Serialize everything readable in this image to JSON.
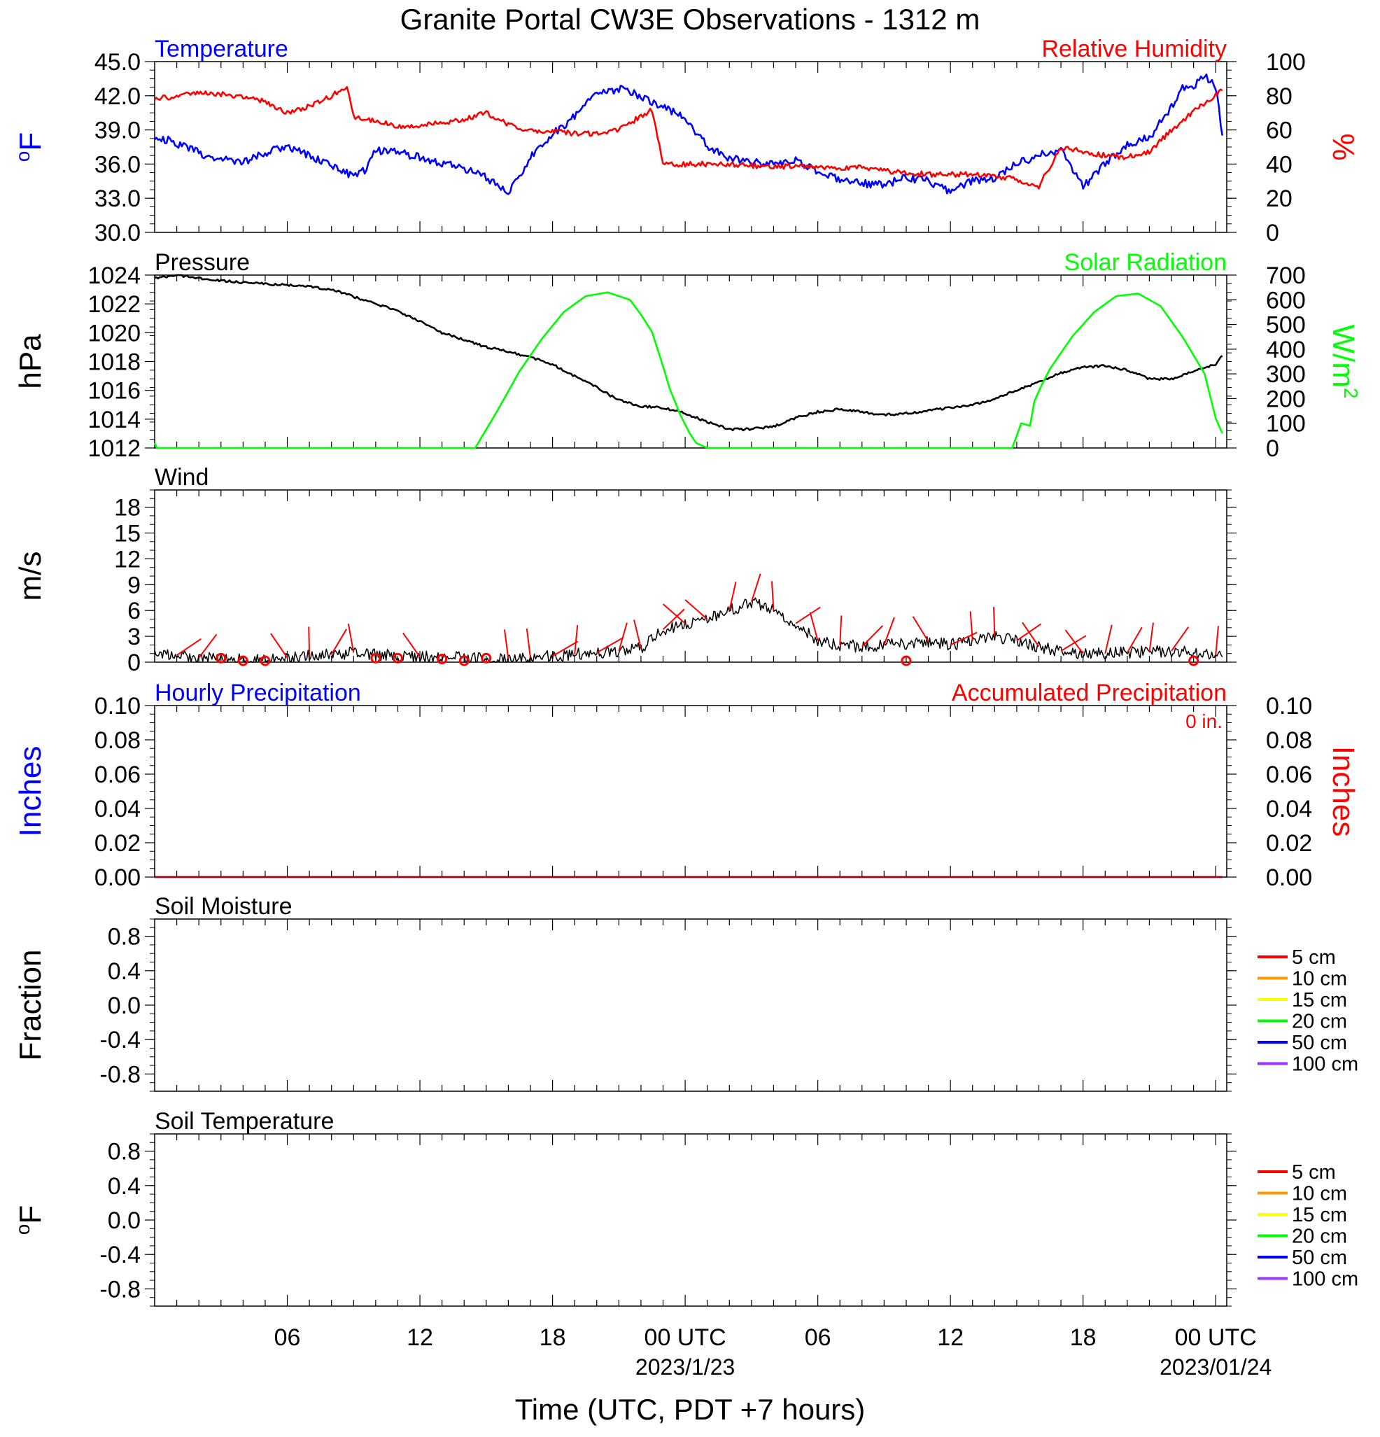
{
  "title": "Granite Portal CW3E Observations - 1312 m",
  "x_axis": {
    "label": "Time (UTC, PDT +7 hours)",
    "ticks": [
      {
        "hour": 6,
        "label": "06"
      },
      {
        "hour": 12,
        "label": "12"
      },
      {
        "hour": 18,
        "label": "18"
      },
      {
        "hour": 24,
        "label": "00 UTC",
        "sub": "2023/1/23"
      },
      {
        "hour": 30,
        "label": "06"
      },
      {
        "hour": 36,
        "label": "12"
      },
      {
        "hour": 42,
        "label": "18"
      },
      {
        "hour": 48,
        "label": "00 UTC",
        "sub": "2023/01/24"
      }
    ],
    "range_hours": [
      0,
      48.5
    ]
  },
  "colors": {
    "temperature": "#0000ff",
    "humidity": "#ff0000",
    "pressure": "#000000",
    "solar": "#00ff00",
    "wind": "#000000",
    "barbs": "#ff0000"
  },
  "chart_data": [
    {
      "id": "temp_rh",
      "type": "line",
      "left_title": "Temperature",
      "right_title": "Relative Humidity",
      "ylabel_left": "oF",
      "ylabel_right": "%",
      "ylim_left": [
        30,
        45
      ],
      "ylim_right": [
        0,
        100
      ],
      "yticks_left": [
        "30.0",
        "33.0",
        "36.0",
        "39.0",
        "42.0",
        "45.0"
      ],
      "yticks_right": [
        "0",
        "20",
        "40",
        "60",
        "80",
        "100"
      ],
      "series": [
        {
          "name": "Temperature",
          "axis": "left",
          "x": [
            0,
            1,
            2,
            3,
            4,
            5,
            6,
            7,
            8,
            9,
            9.5,
            10,
            11,
            12,
            13,
            14,
            15,
            15.5,
            16,
            16.5,
            17,
            18,
            19,
            20,
            21,
            22,
            22.5,
            23,
            24,
            25,
            26,
            27,
            28,
            29,
            30,
            31,
            32,
            33,
            34,
            35,
            36,
            37,
            38,
            39,
            40,
            41,
            42,
            43,
            44,
            45,
            46,
            46.5,
            47,
            47.5,
            48,
            48.3
          ],
          "y": [
            38.5,
            37.8,
            37,
            36.4,
            36.2,
            37,
            37.6,
            36.8,
            35.8,
            35,
            35.5,
            37.2,
            37,
            36.6,
            36.1,
            35.6,
            34.8,
            34.2,
            33.4,
            34.9,
            36.7,
            38.6,
            40.2,
            42.2,
            42.6,
            42,
            41.3,
            41,
            40,
            37.6,
            36.5,
            36.2,
            36,
            36.3,
            35.3,
            34.6,
            34.3,
            34.2,
            34.8,
            34.5,
            33.6,
            34.5,
            34.7,
            36,
            36.8,
            37.2,
            34,
            36,
            37.7,
            38.3,
            41,
            42.7,
            42.9,
            43.8,
            42.8,
            38.5
          ]
        },
        {
          "name": "Relative Humidity",
          "axis": "right",
          "x": [
            0,
            1,
            2,
            3,
            4,
            5,
            6,
            7,
            8,
            8.7,
            9,
            10,
            11,
            12,
            13,
            14,
            15,
            16,
            17,
            18,
            19,
            20,
            21,
            22,
            22.5,
            23,
            24,
            25,
            26,
            27,
            28,
            29,
            30,
            31,
            32,
            33,
            34,
            35,
            36,
            37,
            38,
            39,
            40,
            41,
            42,
            43,
            44,
            45,
            46,
            47,
            48,
            48.3
          ],
          "y": [
            78,
            80,
            82,
            81,
            79,
            77,
            70,
            74,
            80,
            86,
            68,
            65,
            62,
            63,
            64,
            66,
            70,
            63,
            60,
            59,
            58,
            58,
            60,
            68,
            72,
            40,
            40,
            40,
            40,
            39,
            38,
            39,
            38,
            38,
            38,
            36,
            35,
            34,
            34,
            34,
            33,
            31,
            27,
            50,
            47,
            45,
            44,
            47,
            60,
            71,
            80,
            83
          ]
        }
      ]
    },
    {
      "id": "pressure_solar",
      "type": "line",
      "left_title": "Pressure",
      "right_title": "Solar Radiation",
      "ylabel_left": "hPa",
      "ylabel_right": "W/m2",
      "ylim_left": [
        1012,
        1024
      ],
      "ylim_right": [
        0,
        700
      ],
      "yticks_left": [
        "1012",
        "1014",
        "1016",
        "1018",
        "1020",
        "1022",
        "1024"
      ],
      "yticks_right": [
        "0",
        "100",
        "200",
        "300",
        "400",
        "500",
        "600",
        "700"
      ],
      "series": [
        {
          "name": "Pressure",
          "axis": "left",
          "x": [
            0,
            1,
            2,
            3,
            4,
            5,
            6,
            7,
            8,
            9,
            10,
            11,
            12,
            13,
            14,
            15,
            16,
            17,
            18,
            19,
            20,
            21,
            22,
            23,
            24,
            25,
            26,
            27,
            28,
            29,
            30,
            31,
            32,
            33,
            34,
            35,
            36,
            37,
            38,
            39,
            40,
            41,
            42,
            43,
            44,
            45,
            46,
            47,
            48,
            48.3
          ],
          "y": [
            1023.8,
            1024,
            1023.8,
            1023.6,
            1023.5,
            1023.4,
            1023.3,
            1023.2,
            1023,
            1022.5,
            1022,
            1021.5,
            1020.8,
            1020,
            1019.5,
            1019,
            1018.7,
            1018.3,
            1017.8,
            1017,
            1016.2,
            1015.3,
            1014.9,
            1014.8,
            1014.4,
            1013.8,
            1013.3,
            1013.3,
            1013.5,
            1014.1,
            1014.5,
            1014.7,
            1014.5,
            1014.3,
            1014.4,
            1014.6,
            1014.8,
            1015,
            1015.4,
            1016,
            1016.6,
            1017.2,
            1017.6,
            1017.7,
            1017.4,
            1016.8,
            1016.8,
            1017.3,
            1017.8,
            1018.4
          ]
        },
        {
          "name": "Solar Radiation",
          "axis": "right",
          "x": [
            0,
            0.1,
            14.5,
            15.5,
            16.5,
            17.5,
            18.5,
            19.5,
            20.5,
            21.5,
            22,
            22.5,
            23,
            23.3,
            23.8,
            24.2,
            24.5,
            25,
            38.8,
            39.2,
            39.6,
            39.8,
            40.1,
            40.5,
            41.5,
            42.5,
            43.5,
            44.5,
            45.5,
            46.5,
            47.5,
            48,
            48.3
          ],
          "y": [
            20,
            0,
            0,
            150,
            310,
            440,
            550,
            615,
            630,
            600,
            540,
            470,
            330,
            240,
            130,
            60,
            20,
            0,
            0,
            100,
            90,
            190,
            250,
            320,
            450,
            550,
            615,
            625,
            575,
            450,
            300,
            120,
            60
          ]
        }
      ]
    },
    {
      "id": "wind",
      "type": "line",
      "left_title": "Wind",
      "ylabel_left": "m/s",
      "ylim_left": [
        0,
        20
      ],
      "yticks_left": [
        "0",
        "3",
        "6",
        "9",
        "12",
        "15",
        "18"
      ],
      "series": [
        {
          "name": "Wind",
          "axis": "left",
          "x": [
            0,
            1,
            2,
            3,
            4,
            5,
            6,
            7,
            8,
            9,
            10,
            11,
            12,
            13,
            14,
            15,
            16,
            17,
            18,
            19,
            20,
            21,
            22,
            23,
            24,
            25,
            26,
            27,
            28,
            29,
            30,
            31,
            32,
            33,
            34,
            35,
            36,
            37,
            38,
            39,
            40,
            41,
            42,
            43,
            44,
            45,
            46,
            47,
            48,
            48.3
          ],
          "y": [
            1.2,
            0.8,
            0.5,
            0.4,
            0.3,
            0.3,
            0.5,
            0.7,
            0.9,
            1.1,
            0.9,
            0.7,
            0.6,
            0.6,
            0.5,
            0.4,
            0.4,
            0.5,
            0.7,
            0.9,
            1.1,
            1.3,
            1.6,
            3.8,
            4.5,
            5,
            6,
            7,
            6,
            4.5,
            2.5,
            2,
            1.8,
            2,
            2.2,
            2.4,
            2,
            2.5,
            3,
            2.5,
            1.8,
            1.3,
            1,
            1,
            1.1,
            1.2,
            1.3,
            1.1,
            0.8,
            0.6
          ]
        },
        {
          "name": "Calm markers",
          "x": [
            3,
            4,
            5,
            10,
            11,
            13,
            14,
            15,
            34,
            47
          ],
          "y": [
            0.3,
            0,
            0,
            0.3,
            0.3,
            0.2,
            0,
            0.3,
            0,
            0
          ]
        }
      ]
    },
    {
      "id": "precip",
      "type": "line",
      "left_title": "Hourly Precipitation",
      "right_title": "Accumulated Precipitation",
      "annotation": "0 in.",
      "ylabel_left": "Inches",
      "ylabel_right": "Inches",
      "ylim_left": [
        0,
        0.1
      ],
      "ylim_right": [
        0,
        0.1
      ],
      "yticks_left": [
        "0.00",
        "0.02",
        "0.04",
        "0.06",
        "0.08",
        "0.10"
      ],
      "yticks_right": [
        "0.00",
        "0.02",
        "0.04",
        "0.06",
        "0.08",
        "0.10"
      ],
      "series": [
        {
          "name": "Hourly Precipitation",
          "x": [
            0,
            48.3
          ],
          "y": [
            0,
            0
          ]
        },
        {
          "name": "Accumulated Precipitation",
          "x": [
            0,
            48.3
          ],
          "y": [
            0,
            0
          ]
        }
      ]
    },
    {
      "id": "soil_moisture",
      "type": "line",
      "left_title": "Soil Moisture",
      "ylabel_left": "Fraction",
      "ylim_left": [
        -1,
        1
      ],
      "yticks_left": [
        "-0.8",
        "-0.4",
        "0.0",
        "0.4",
        "0.8"
      ],
      "legend": [
        {
          "label": "5 cm",
          "color": "#ff0000"
        },
        {
          "label": "10 cm",
          "color": "#ff9900"
        },
        {
          "label": "15 cm",
          "color": "#ffff00"
        },
        {
          "label": "20 cm",
          "color": "#00ff00"
        },
        {
          "label": "50 cm",
          "color": "#0000ff"
        },
        {
          "label": "100 cm",
          "color": "#9933ff"
        }
      ],
      "series": []
    },
    {
      "id": "soil_temp",
      "type": "line",
      "left_title": "Soil Temperature",
      "ylabel_left": "oF",
      "ylim_left": [
        -1,
        1
      ],
      "yticks_left": [
        "-0.8",
        "-0.4",
        "0.0",
        "0.4",
        "0.8"
      ],
      "legend": [
        {
          "label": "5 cm",
          "color": "#ff0000"
        },
        {
          "label": "10 cm",
          "color": "#ff9900"
        },
        {
          "label": "15 cm",
          "color": "#ffff00"
        },
        {
          "label": "20 cm",
          "color": "#00ff00"
        },
        {
          "label": "50 cm",
          "color": "#0000ff"
        },
        {
          "label": "100 cm",
          "color": "#9933ff"
        }
      ],
      "series": []
    }
  ]
}
